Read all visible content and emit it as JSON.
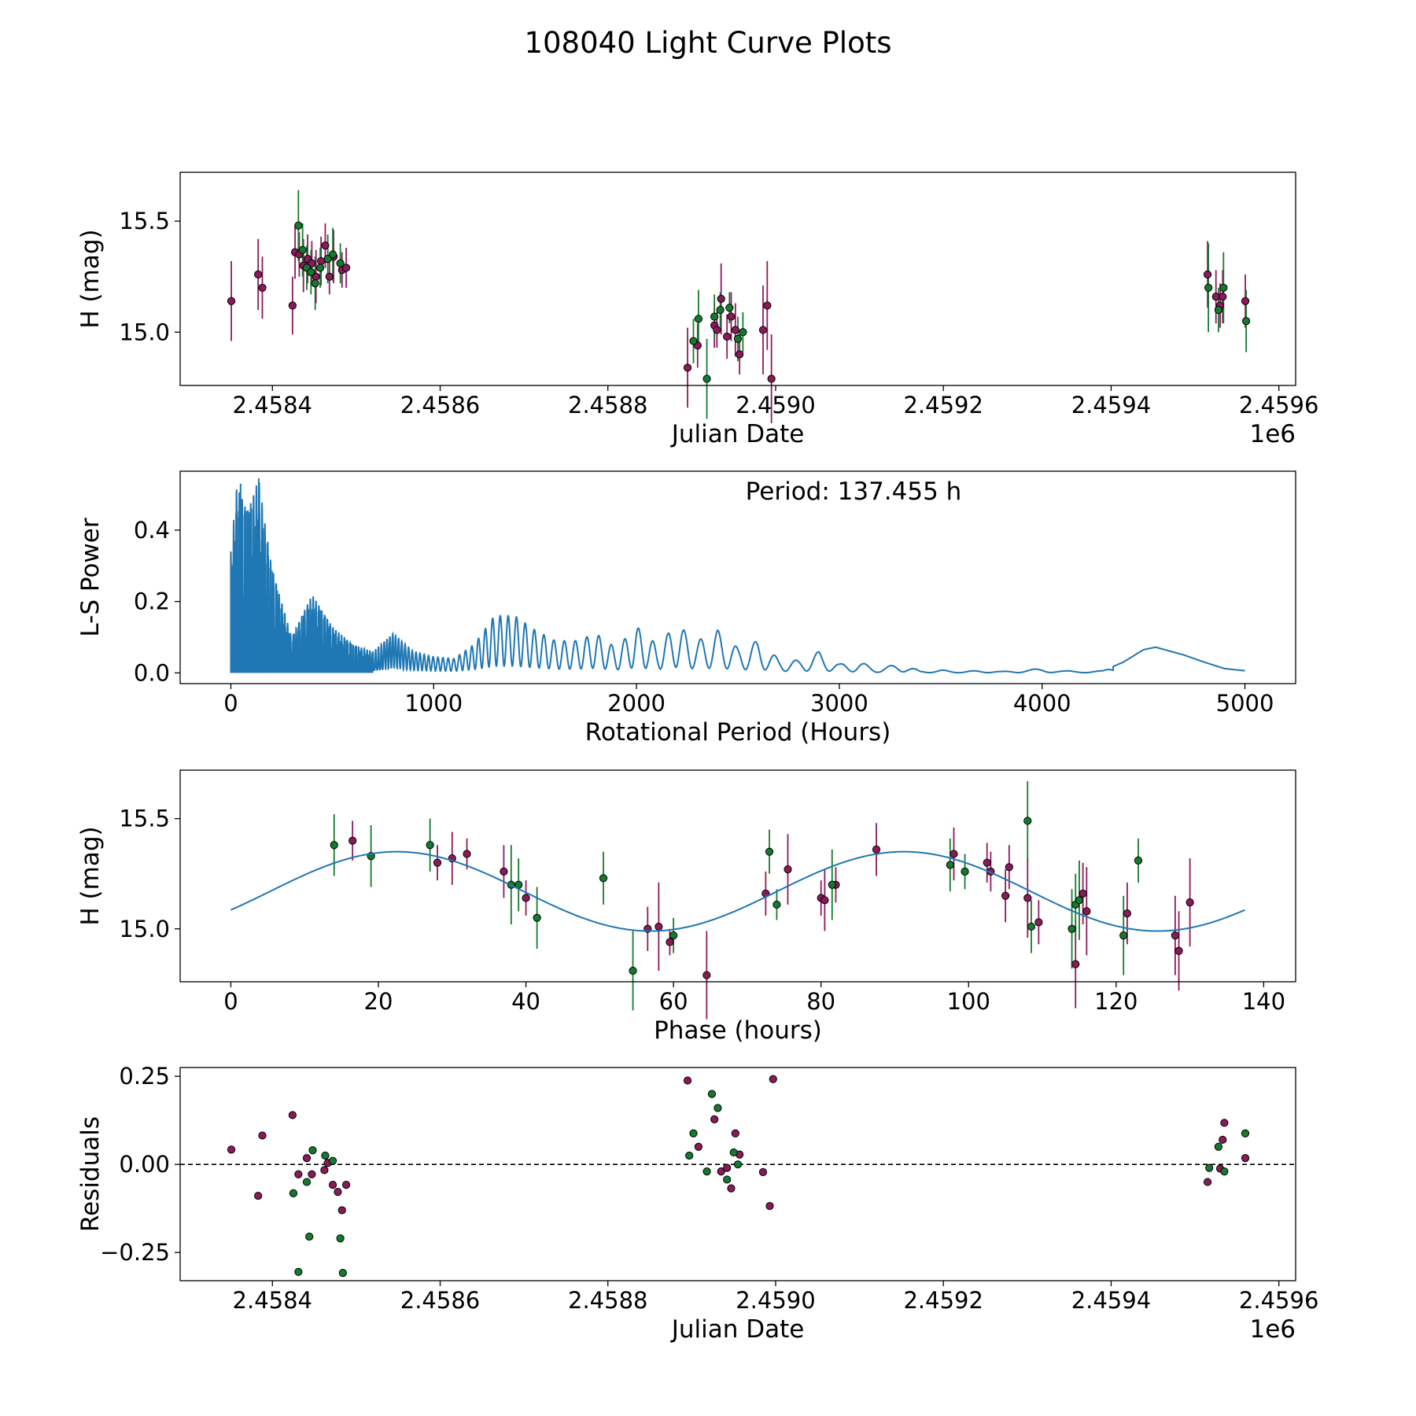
{
  "figure_title": "108040 Light Curve Plots",
  "colors": {
    "filter_a": "#8b1a5b",
    "filter_b": "#167a2e",
    "model": "#1f77b4",
    "zero_line": "#000000"
  },
  "chart_data": [
    {
      "id": "lightcurve",
      "type": "scatter",
      "title": "",
      "xlabel": "Julian Date",
      "ylabel": "H (mag)",
      "x_offset_label": "1e6",
      "xlim": [
        2.45829,
        2.45962
      ],
      "ylim": [
        14.76,
        15.72
      ],
      "xticks": [
        2.4584,
        2.4586,
        2.4588,
        2.459,
        2.4592,
        2.4594,
        2.4596
      ],
      "xtick_labels": [
        "2.4584",
        "2.4586",
        "2.4588",
        "2.4590",
        "2.4592",
        "2.4594",
        "2.4596"
      ],
      "yticks": [
        15.0,
        15.5
      ],
      "ytick_labels": [
        "15.0",
        "15.5"
      ],
      "series": [
        {
          "name": "filter_a",
          "color": "#8b1a5b",
          "x": [
            2.458351,
            2.458383,
            2.458388,
            2.458424,
            2.458427,
            2.458432,
            2.458437,
            2.458442,
            2.458447,
            2.458452,
            2.458458,
            2.458463,
            2.458468,
            2.458473,
            2.458483,
            2.458488,
            2.458895,
            2.458907,
            2.458927,
            2.45893,
            2.458935,
            2.458942,
            2.458947,
            2.458952,
            2.458957,
            2.458985,
            2.45899,
            2.458995,
            2.459515,
            2.459525,
            2.45953,
            2.459533,
            2.45956
          ],
          "y": [
            15.14,
            15.26,
            15.2,
            15.12,
            15.36,
            15.35,
            15.3,
            15.33,
            15.31,
            15.25,
            15.32,
            15.39,
            15.25,
            15.34,
            15.28,
            15.29,
            14.84,
            14.94,
            15.03,
            15.01,
            15.15,
            14.98,
            15.07,
            15.01,
            14.9,
            15.01,
            15.12,
            14.79,
            15.26,
            15.16,
            15.12,
            15.16,
            15.14
          ],
          "yerr": [
            0.18,
            0.16,
            0.14,
            0.13,
            0.12,
            0.1,
            0.12,
            0.11,
            0.1,
            0.12,
            0.11,
            0.1,
            0.08,
            0.12,
            0.08,
            0.09,
            0.18,
            0.1,
            0.1,
            0.08,
            0.16,
            0.1,
            0.11,
            0.12,
            0.09,
            0.2,
            0.2,
            0.2,
            0.15,
            0.12,
            0.1,
            0.12,
            0.12
          ]
        },
        {
          "name": "filter_b",
          "color": "#167a2e",
          "x": [
            2.458431,
            2.458436,
            2.458441,
            2.458446,
            2.458451,
            2.458457,
            2.458466,
            2.458472,
            2.458481,
            2.458902,
            2.458908,
            2.458918,
            2.458927,
            2.458934,
            2.458945,
            2.458955,
            2.458961,
            2.459516,
            2.459528,
            2.459534,
            2.459561
          ],
          "y": [
            15.48,
            15.37,
            15.29,
            15.27,
            15.22,
            15.29,
            15.33,
            15.35,
            15.31,
            14.96,
            15.06,
            14.79,
            15.07,
            15.1,
            15.11,
            14.97,
            15.0,
            15.2,
            15.1,
            15.2,
            15.05
          ],
          "yerr": [
            0.16,
            0.12,
            0.1,
            0.1,
            0.12,
            0.09,
            0.11,
            0.12,
            0.09,
            0.1,
            0.13,
            0.18,
            0.1,
            0.08,
            0.07,
            0.1,
            0.09,
            0.2,
            0.1,
            0.16,
            0.14
          ]
        }
      ]
    },
    {
      "id": "periodogram",
      "type": "line",
      "title": "",
      "annotation": "Period: 137.455 h",
      "xlabel": "Rotational Period (Hours)",
      "ylabel": "L-S Power",
      "xlim": [
        -250,
        5250
      ],
      "ylim": [
        -0.03,
        0.565
      ],
      "xticks": [
        0,
        1000,
        2000,
        3000,
        4000,
        5000
      ],
      "xtick_labels": [
        "0",
        "1000",
        "2000",
        "3000",
        "4000",
        "5000"
      ],
      "yticks": [
        0.0,
        0.2,
        0.4
      ],
      "ytick_labels": [
        "0.0",
        "0.2",
        "0.4"
      ],
      "series": [
        {
          "name": "L-S power",
          "color": "#1f77b4",
          "envelope_x": [
            0,
            30,
            80,
            137,
            200,
            300,
            400,
            500,
            600,
            700,
            800,
            900,
            1000,
            1100,
            1200,
            1300,
            1400,
            1500,
            1600,
            1700,
            1800,
            1900,
            2000,
            2100,
            2200,
            2300,
            2400,
            2500,
            2600,
            2700,
            2800,
            2900,
            3000,
            3100,
            3200,
            3300,
            3400,
            3500,
            3600,
            3700,
            3800,
            3900,
            4000,
            4100,
            4200,
            4300,
            4400,
            4500,
            4560,
            4700,
            4800,
            4900,
            5000
          ],
          "envelope_y": [
            0.34,
            0.53,
            0.45,
            0.545,
            0.3,
            0.1,
            0.22,
            0.13,
            0.08,
            0.06,
            0.11,
            0.06,
            0.045,
            0.04,
            0.08,
            0.16,
            0.16,
            0.12,
            0.09,
            0.09,
            0.11,
            0.07,
            0.13,
            0.08,
            0.135,
            0.09,
            0.12,
            0.07,
            0.09,
            0.04,
            0.035,
            0.06,
            0.025,
            0.03,
            0.012,
            0.028,
            0.005,
            0.008,
            0.004,
            0.007,
            0.004,
            0.008,
            0.012,
            0.006,
            0.005,
            0.006,
            0.03,
            0.065,
            0.072,
            0.05,
            0.03,
            0.012,
            0.006
          ]
        }
      ]
    },
    {
      "id": "phased",
      "type": "scatter",
      "title": "",
      "xlabel": "Phase (hours)",
      "ylabel": "H (mag)",
      "xlim": [
        -6.87,
        144.33
      ],
      "ylim": [
        14.76,
        15.72
      ],
      "xticks": [
        0,
        20,
        40,
        60,
        80,
        100,
        120,
        140
      ],
      "xtick_labels": [
        "0",
        "20",
        "40",
        "60",
        "80",
        "100",
        "120",
        "140"
      ],
      "yticks": [
        15.0,
        15.5
      ],
      "ytick_labels": [
        "15.0",
        "15.5"
      ],
      "model": {
        "name": "sine fit",
        "color": "#1f77b4",
        "period": 137.455,
        "mean": 15.17,
        "amplitude": 0.18,
        "peak_phase": 22.5,
        "harmonics": 2
      },
      "series": [
        {
          "name": "filter_a",
          "color": "#8b1a5b",
          "x": [
            16.5,
            28.0,
            30.0,
            32.0,
            37.0,
            40.0,
            56.5,
            58.0,
            59.5,
            64.5,
            72.5,
            75.5,
            80.0,
            80.5,
            82.0,
            87.5,
            98.0,
            102.5,
            103.0,
            105.0,
            105.5,
            108.0,
            109.5,
            114.5,
            115.5,
            116.0,
            121.5,
            128.0,
            128.5,
            130.0
          ],
          "y": [
            15.4,
            15.3,
            15.32,
            15.34,
            15.26,
            15.14,
            15.0,
            15.01,
            14.94,
            14.79,
            15.16,
            15.27,
            15.14,
            15.13,
            15.2,
            15.36,
            15.34,
            15.3,
            15.26,
            15.15,
            15.28,
            15.14,
            15.03,
            14.84,
            15.16,
            15.08,
            15.07,
            14.97,
            14.9,
            15.12
          ],
          "yerr": [
            0.09,
            0.08,
            0.12,
            0.07,
            0.12,
            0.08,
            0.1,
            0.2,
            0.06,
            0.2,
            0.1,
            0.16,
            0.08,
            0.14,
            0.08,
            0.12,
            0.12,
            0.09,
            0.09,
            0.12,
            0.1,
            0.18,
            0.1,
            0.2,
            0.14,
            0.2,
            0.14,
            0.18,
            0.18,
            0.2
          ],
          "width_hint": ""
        },
        {
          "name": "filter_b",
          "color": "#167a2e",
          "x": [
            14.0,
            19.0,
            27.0,
            38.0,
            39.0,
            41.5,
            50.5,
            54.5,
            60.0,
            73.0,
            74.0,
            81.5,
            97.5,
            99.5,
            108.0,
            108.5,
            114.0,
            114.5,
            115.0,
            121.0,
            123.0
          ],
          "y": [
            15.38,
            15.33,
            15.38,
            15.2,
            15.2,
            15.05,
            15.23,
            14.81,
            14.97,
            15.35,
            15.11,
            15.2,
            15.29,
            15.26,
            15.49,
            15.01,
            15.0,
            15.11,
            15.13,
            14.97,
            15.31
          ],
          "yerr": [
            0.14,
            0.14,
            0.12,
            0.18,
            0.12,
            0.14,
            0.12,
            0.18,
            0.08,
            0.1,
            0.07,
            0.16,
            0.12,
            0.08,
            0.18,
            0.12,
            0.18,
            0.14,
            0.18,
            0.18,
            0.1
          ],
          "width_hint": ""
        }
      ]
    },
    {
      "id": "residuals",
      "type": "scatter",
      "title": "",
      "xlabel": "Julian Date",
      "ylabel": "Residuals",
      "x_offset_label": "1e6",
      "xlim": [
        2.45829,
        2.45962
      ],
      "ylim": [
        -0.33,
        0.275
      ],
      "xticks": [
        2.4584,
        2.4586,
        2.4588,
        2.459,
        2.4592,
        2.4594,
        2.4596
      ],
      "xtick_labels": [
        "2.4584",
        "2.4586",
        "2.4588",
        "2.4590",
        "2.4592",
        "2.4594",
        "2.4596"
      ],
      "yticks": [
        -0.25,
        0.0,
        0.25
      ],
      "ytick_labels": [
        "−0.25",
        "0.00",
        "0.25"
      ],
      "zero_line": 0.0,
      "series": [
        {
          "name": "filter_a",
          "color": "#8b1a5b",
          "x": [
            2.458351,
            2.458383,
            2.458388,
            2.458424,
            2.458431,
            2.458441,
            2.458447,
            2.458462,
            2.458466,
            2.458472,
            2.458478,
            2.458483,
            2.458488,
            2.458895,
            2.458908,
            2.458927,
            2.458935,
            2.458942,
            2.458947,
            2.458952,
            2.458957,
            2.458985,
            2.458993,
            2.458997,
            2.459515,
            2.45953,
            2.459533,
            2.459535,
            2.45956
          ],
          "y": [
            0.042,
            -0.089,
            0.082,
            0.14,
            -0.028,
            0.018,
            -0.028,
            -0.016,
            0.004,
            -0.058,
            -0.078,
            -0.13,
            -0.058,
            0.238,
            0.05,
            0.128,
            -0.02,
            -0.01,
            -0.068,
            0.088,
            0.028,
            -0.022,
            -0.118,
            0.242,
            -0.05,
            -0.012,
            0.07,
            0.118,
            0.018
          ],
          "yerr": []
        },
        {
          "name": "filter_b",
          "color": "#167a2e",
          "x": [
            2.458425,
            2.458431,
            2.458441,
            2.458444,
            2.458448,
            2.458463,
            2.458472,
            2.458481,
            2.458484,
            2.458897,
            2.458902,
            2.458918,
            2.458924,
            2.458931,
            2.458942,
            2.45895,
            2.458955,
            2.459517,
            2.459528,
            2.459535,
            2.45956
          ],
          "y": [
            -0.082,
            -0.305,
            -0.05,
            -0.205,
            0.04,
            0.025,
            0.01,
            -0.21,
            -0.308,
            0.025,
            0.088,
            -0.02,
            0.2,
            0.16,
            -0.043,
            0.034,
            0.0,
            -0.01,
            0.05,
            -0.02,
            0.088
          ],
          "yerr": []
        }
      ]
    }
  ]
}
